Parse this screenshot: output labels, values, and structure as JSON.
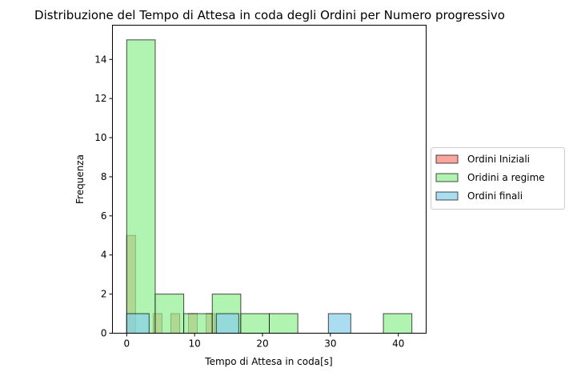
{
  "chart_data": {
    "type": "bar",
    "title": "Distribuzione del Tempo di Attesa in coda degli Ordini per Numero progressivo",
    "xlabel": "Tempo di Attesa in coda[s]",
    "ylabel": "Frequenza",
    "xlim": [
      -2.1,
      44.1
    ],
    "ylim": [
      0,
      15.75
    ],
    "xticks": [
      0,
      10,
      20,
      30,
      40
    ],
    "yticks": [
      0,
      2,
      4,
      6,
      8,
      10,
      12,
      14
    ],
    "grid": false,
    "legend_position": "right",
    "series": [
      {
        "name": "Ordini Iniziali",
        "color": "#FA8072",
        "bins": [
          [
            0,
            1.3,
            5
          ],
          [
            3.9,
            5.2,
            1
          ],
          [
            6.5,
            7.8,
            1
          ],
          [
            9.1,
            10.4,
            1
          ],
          [
            11.7,
            13,
            1
          ]
        ]
      },
      {
        "name": "Oridini a regime",
        "color": "#90EE90",
        "bins": [
          [
            0,
            4.2,
            15
          ],
          [
            4.2,
            8.4,
            2
          ],
          [
            8.4,
            12.6,
            1
          ],
          [
            12.6,
            16.8,
            2
          ],
          [
            16.8,
            21,
            1
          ],
          [
            21,
            25.2,
            1
          ],
          [
            37.8,
            42,
            1
          ]
        ]
      },
      {
        "name": "Ordini finali",
        "color": "#87CEEB",
        "bins": [
          [
            0,
            3.3,
            1
          ],
          [
            13.2,
            16.5,
            1
          ],
          [
            29.7,
            33,
            1
          ]
        ]
      }
    ]
  }
}
